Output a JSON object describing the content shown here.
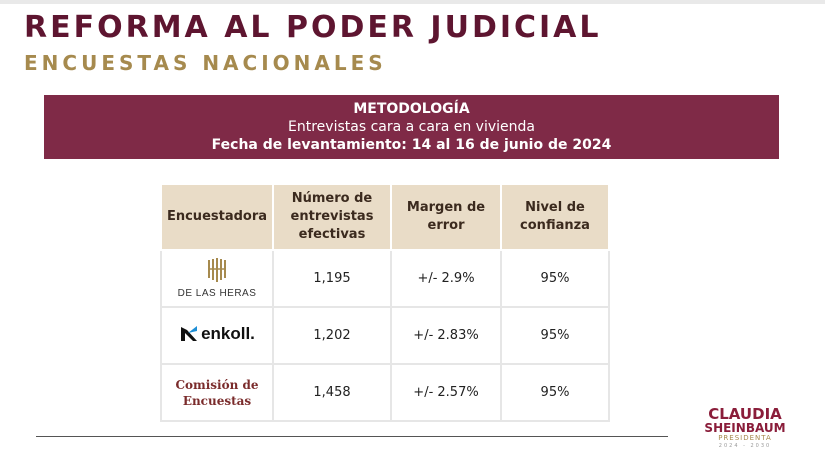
{
  "header": {
    "title": "REFORMA AL PODER JUDICIAL",
    "subtitle": "ENCUESTAS NACIONALES"
  },
  "methodology": {
    "title": "METODOLOGÍA",
    "line1": "Entrevistas cara a cara en vivienda",
    "line2": "Fecha de levantamiento: 14 al 16 de junio de 2024"
  },
  "table": {
    "headers": [
      "Encuestadora",
      "Número de entrevistas efectivas",
      "Margen de error",
      "Nivel de confianza"
    ],
    "rows": [
      {
        "pollster": "DE LAS HERAS",
        "interviews": "1,195",
        "margin": "+/- 2.9%",
        "confidence": "95%"
      },
      {
        "pollster": "enkoll.",
        "interviews": "1,202",
        "margin": "+/- 2.83%",
        "confidence": "95%"
      },
      {
        "pollster_line1": "Comisión de",
        "pollster_line2": "Encuestas",
        "interviews": "1,458",
        "margin": "+/- 2.57%",
        "confidence": "95%"
      }
    ]
  },
  "brand": {
    "name1": "CLAUDIA",
    "name2": "SHEINBAUM",
    "role": "PRESIDENTA",
    "years": "2024 - 2030"
  },
  "colors": {
    "primary": "#7f2a47",
    "title": "#5e1530",
    "gold": "#a68a4e",
    "header_bg": "#e9dcc7"
  },
  "icons": {
    "heras_logo": "heras-logo-icon",
    "enkoll_logo": "enkoll-logo-icon"
  }
}
